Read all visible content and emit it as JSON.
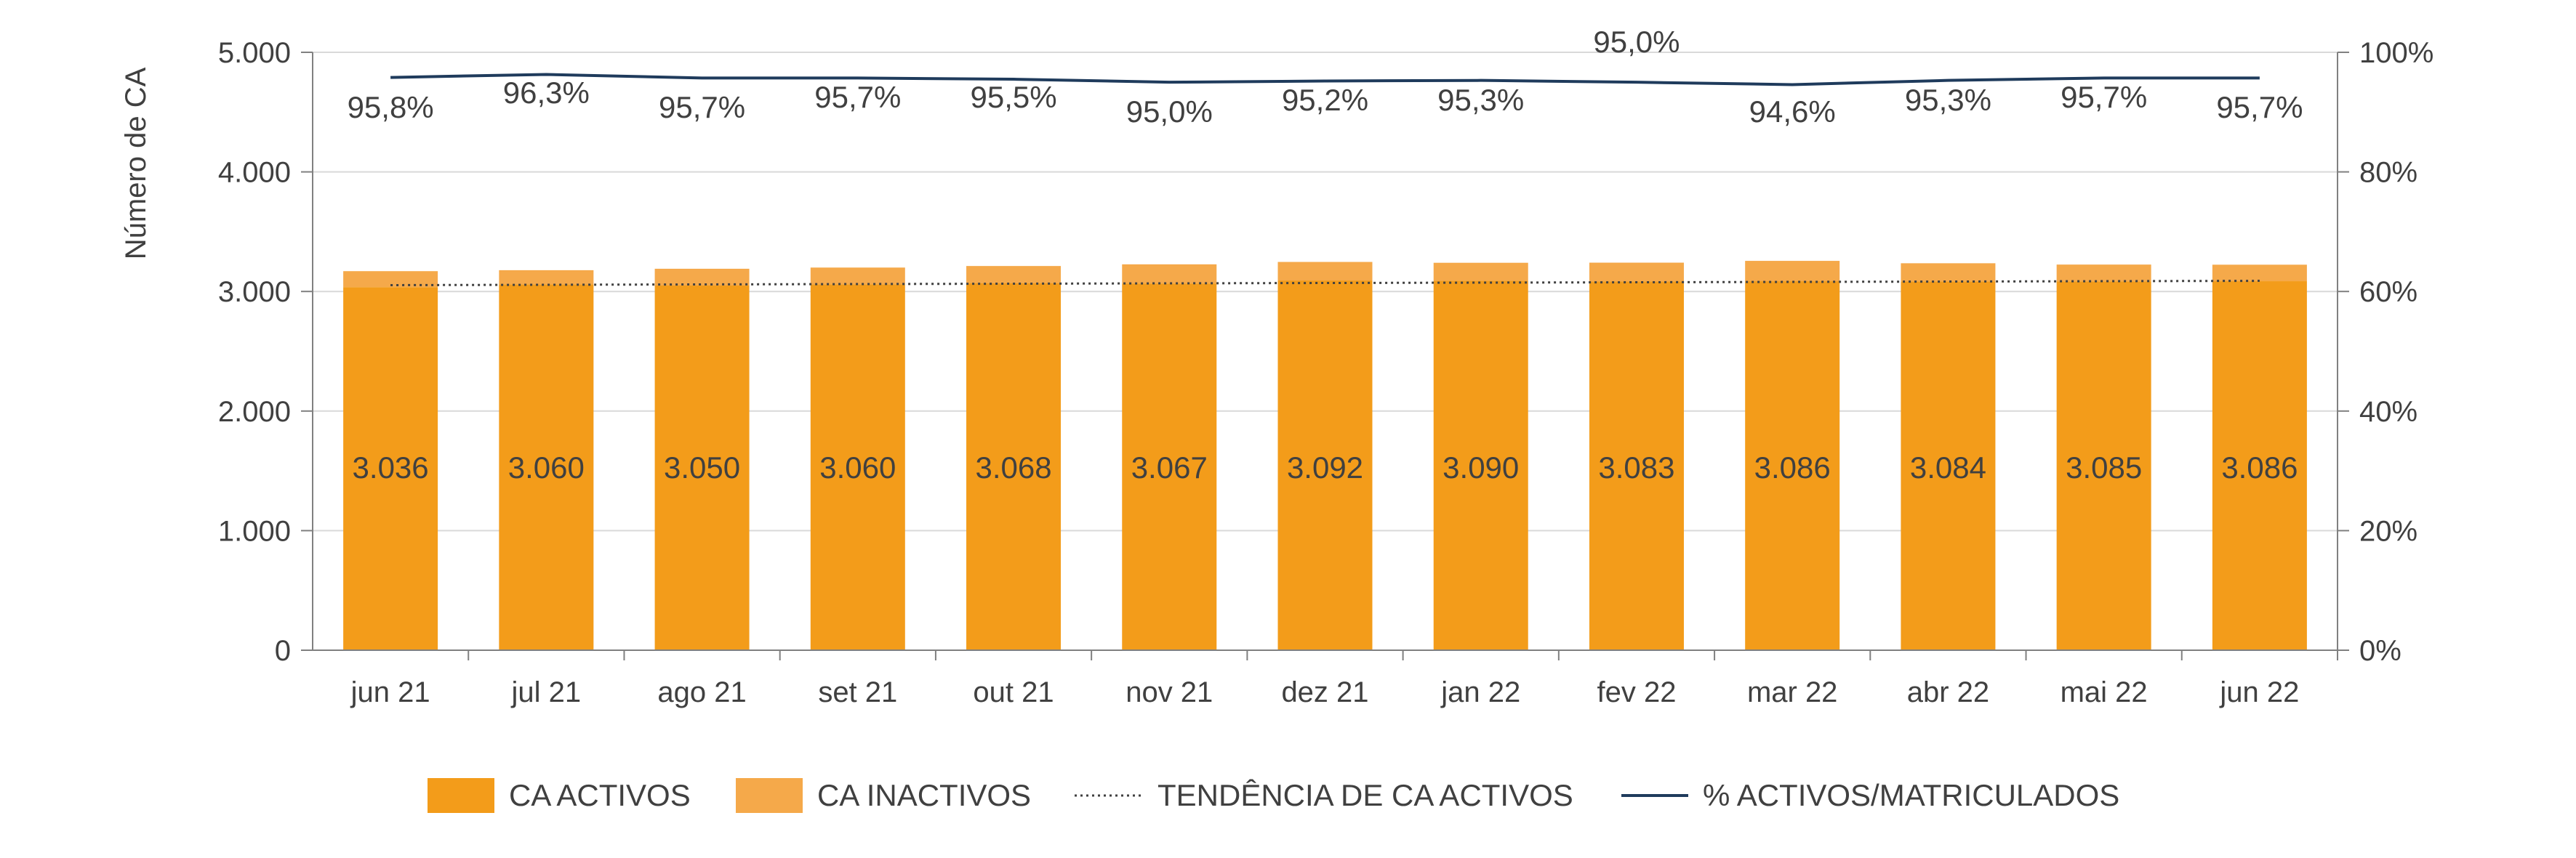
{
  "chart_data": {
    "type": "bar",
    "categories": [
      "jun 21",
      "jul 21",
      "ago 21",
      "set 21",
      "out 21",
      "nov 21",
      "dez 21",
      "jan 22",
      "fev 22",
      "mar 22",
      "abr 22",
      "mai 22",
      "jun 22"
    ],
    "series": [
      {
        "name": "CA ACTIVOS",
        "kind": "bar-stacked",
        "axis": "left",
        "color": "#F39C1A",
        "values": [
          3036,
          3060,
          3050,
          3060,
          3068,
          3067,
          3092,
          3090,
          3083,
          3086,
          3084,
          3085,
          3086
        ]
      },
      {
        "name": "CA INACTIVOS",
        "kind": "bar-stacked",
        "axis": "left",
        "color": "#F5A94A",
        "values": [
          134,
          118,
          140,
          140,
          145,
          160,
          155,
          150,
          158,
          170,
          152,
          140,
          138
        ]
      },
      {
        "name": "TENDÊNCIA DE CA ACTIVOS",
        "kind": "line-dotted",
        "axis": "left",
        "color": "#404040",
        "values": [
          3053,
          3056,
          3059,
          3062,
          3065,
          3068,
          3071,
          3074,
          3077,
          3080,
          3083,
          3086,
          3089
        ]
      },
      {
        "name": "% ACTIVOS/MATRICULADOS",
        "kind": "line",
        "axis": "right",
        "color": "#1F3B5C",
        "values": [
          95.8,
          96.3,
          95.7,
          95.7,
          95.5,
          95.0,
          95.2,
          95.3,
          95.0,
          94.6,
          95.3,
          95.7,
          95.7
        ]
      }
    ],
    "bar_labels": [
      "3.036",
      "3.060",
      "3.050",
      "3.060",
      "3.068",
      "3.067",
      "3.092",
      "3.090",
      "3.083",
      "3.086",
      "3.084",
      "3.085",
      "3.086"
    ],
    "pct_labels": [
      "95,8%",
      "96,3%",
      "95,7%",
      "95,7%",
      "95,5%",
      "95,0%",
      "95,2%",
      "95,3%",
      "95,0%",
      "94,6%",
      "95,3%",
      "95,7%",
      "95,7%"
    ],
    "ylabel": "Número de CA",
    "ylim": [
      0,
      5000
    ],
    "y_ticks": [
      "0",
      "1.000",
      "2.000",
      "3.000",
      "4.000",
      "5.000"
    ],
    "y2lim": [
      0,
      100
    ],
    "y2_ticks": [
      "0%",
      "20%",
      "40%",
      "60%",
      "80%",
      "100%"
    ],
    "grid": true,
    "legend_position": "bottom"
  }
}
